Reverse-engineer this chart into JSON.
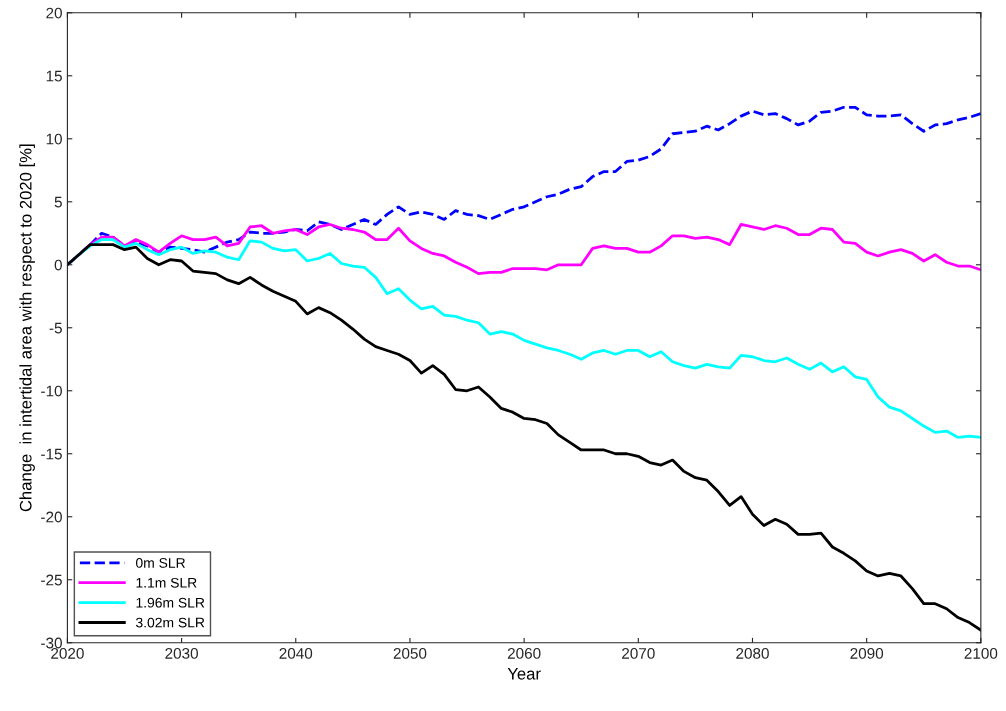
{
  "chart_data": {
    "type": "line",
    "xlabel": "Year",
    "ylabel": "Change  in intertidal area with respect to 2020 [%]",
    "x": [
      2020,
      2021,
      2022,
      2023,
      2024,
      2025,
      2026,
      2027,
      2028,
      2029,
      2030,
      2031,
      2032,
      2033,
      2034,
      2035,
      2036,
      2037,
      2038,
      2039,
      2040,
      2041,
      2042,
      2043,
      2044,
      2045,
      2046,
      2047,
      2048,
      2049,
      2050,
      2051,
      2052,
      2053,
      2054,
      2055,
      2056,
      2057,
      2058,
      2059,
      2060,
      2061,
      2062,
      2063,
      2064,
      2065,
      2066,
      2067,
      2068,
      2069,
      2070,
      2071,
      2072,
      2073,
      2074,
      2075,
      2076,
      2077,
      2078,
      2079,
      2080,
      2081,
      2082,
      2083,
      2084,
      2085,
      2086,
      2087,
      2088,
      2089,
      2090,
      2091,
      2092,
      2093,
      2094,
      2095,
      2096,
      2097,
      2098,
      2099,
      2100
    ],
    "series": [
      {
        "name": "0m SLR",
        "color": "#0000ff",
        "line_style": "dashed",
        "values": [
          0,
          0.8,
          1.6,
          2.5,
          2.2,
          1.5,
          1.8,
          1.5,
          1.0,
          1.4,
          1.3,
          1.2,
          1.0,
          1.4,
          1.8,
          2.0,
          2.6,
          2.5,
          2.5,
          2.6,
          2.8,
          2.7,
          3.4,
          3.2,
          2.8,
          3.2,
          3.6,
          3.2,
          4.0,
          4.6,
          4.0,
          4.2,
          4.0,
          3.6,
          4.3,
          4.0,
          3.9,
          3.6,
          4.0,
          4.4,
          4.6,
          5.0,
          5.4,
          5.6,
          6.0,
          6.2,
          7.0,
          7.4,
          7.4,
          8.2,
          8.3,
          8.6,
          9.2,
          10.4,
          10.5,
          10.6,
          11.0,
          10.7,
          11.2,
          11.8,
          12.2,
          11.9,
          12.0,
          11.6,
          11.1,
          11.4,
          12.1,
          12.2,
          12.5,
          12.5,
          11.9,
          11.8,
          11.8,
          11.9,
          11.2,
          10.6,
          11.1,
          11.2,
          11.5,
          11.7,
          12.0
        ]
      },
      {
        "name": "1.1m SLR",
        "color": "#ff00ff",
        "line_style": "solid",
        "values": [
          0,
          0.8,
          1.6,
          2.2,
          2.2,
          1.5,
          2.0,
          1.6,
          1.0,
          1.7,
          2.3,
          2.0,
          2.0,
          2.2,
          1.5,
          1.7,
          3.0,
          3.1,
          2.5,
          2.7,
          2.8,
          2.4,
          3.0,
          3.2,
          2.9,
          2.8,
          2.6,
          2.0,
          2.0,
          2.9,
          1.9,
          1.3,
          0.9,
          0.7,
          0.2,
          -0.2,
          -0.7,
          -0.6,
          -0.6,
          -0.3,
          -0.3,
          -0.3,
          -0.4,
          0.0,
          0.0,
          0.0,
          1.3,
          1.5,
          1.3,
          1.3,
          1.0,
          1.0,
          1.5,
          2.3,
          2.3,
          2.1,
          2.2,
          2.0,
          1.6,
          3.2,
          3.0,
          2.8,
          3.1,
          2.9,
          2.4,
          2.4,
          2.9,
          2.8,
          1.8,
          1.7,
          1.0,
          0.7,
          1.0,
          1.2,
          0.9,
          0.3,
          0.8,
          0.2,
          -0.1,
          -0.1,
          -0.4
        ]
      },
      {
        "name": "1.96m SLR",
        "color": "#00ffff",
        "line_style": "solid",
        "values": [
          0,
          0.8,
          1.5,
          2.0,
          2.0,
          1.4,
          1.7,
          1.2,
          0.8,
          1.2,
          1.4,
          0.9,
          1.1,
          1.0,
          0.6,
          0.4,
          1.9,
          1.8,
          1.3,
          1.1,
          1.2,
          0.3,
          0.5,
          0.9,
          0.1,
          -0.1,
          -0.2,
          -1.0,
          -2.3,
          -1.9,
          -2.8,
          -3.5,
          -3.3,
          -4.0,
          -4.1,
          -4.4,
          -4.6,
          -5.5,
          -5.3,
          -5.5,
          -6.0,
          -6.3,
          -6.6,
          -6.8,
          -7.1,
          -7.5,
          -7.0,
          -6.8,
          -7.1,
          -6.8,
          -6.8,
          -7.3,
          -6.9,
          -7.7,
          -8.0,
          -8.2,
          -7.9,
          -8.1,
          -8.2,
          -7.2,
          -7.3,
          -7.6,
          -7.7,
          -7.4,
          -7.9,
          -8.3,
          -7.8,
          -8.5,
          -8.1,
          -8.9,
          -9.1,
          -10.5,
          -11.3,
          -11.6,
          -12.2,
          -12.8,
          -13.3,
          -13.2,
          -13.7,
          -13.6,
          -13.7
        ]
      },
      {
        "name": "3.02m SLR",
        "color": "#000000",
        "line_style": "solid",
        "values": [
          0,
          0.8,
          1.6,
          1.6,
          1.6,
          1.2,
          1.4,
          0.5,
          0.0,
          0.4,
          0.3,
          -0.5,
          -0.6,
          -0.7,
          -1.2,
          -1.5,
          -1.0,
          -1.6,
          -2.1,
          -2.5,
          -2.9,
          -3.9,
          -3.4,
          -3.8,
          -4.4,
          -5.1,
          -5.9,
          -6.5,
          -6.8,
          -7.1,
          -7.6,
          -8.6,
          -8.0,
          -8.7,
          -9.9,
          -10.0,
          -9.7,
          -10.5,
          -11.4,
          -11.7,
          -12.2,
          -12.3,
          -12.6,
          -13.5,
          -14.1,
          -14.7,
          -14.7,
          -14.7,
          -15.0,
          -15.0,
          -15.2,
          -15.7,
          -15.9,
          -15.5,
          -16.4,
          -16.9,
          -17.1,
          -18.0,
          -19.1,
          -18.4,
          -19.8,
          -20.7,
          -20.2,
          -20.6,
          -21.4,
          -21.4,
          -21.3,
          -22.4,
          -22.9,
          -23.5,
          -24.3,
          -24.7,
          -24.5,
          -24.7,
          -25.7,
          -26.9,
          -26.9,
          -27.3,
          -28.0,
          -28.4,
          -29.0
        ]
      }
    ],
    "xlim": [
      2020,
      2100
    ],
    "xticks": [
      2020,
      2030,
      2040,
      2050,
      2060,
      2070,
      2080,
      2090,
      2100
    ],
    "ylim": [
      -30,
      20
    ],
    "yticks": [
      -30,
      -25,
      -20,
      -15,
      -10,
      -5,
      0,
      5,
      10,
      15,
      20
    ],
    "grid": false,
    "legend": "bottom left",
    "marker": "none"
  }
}
